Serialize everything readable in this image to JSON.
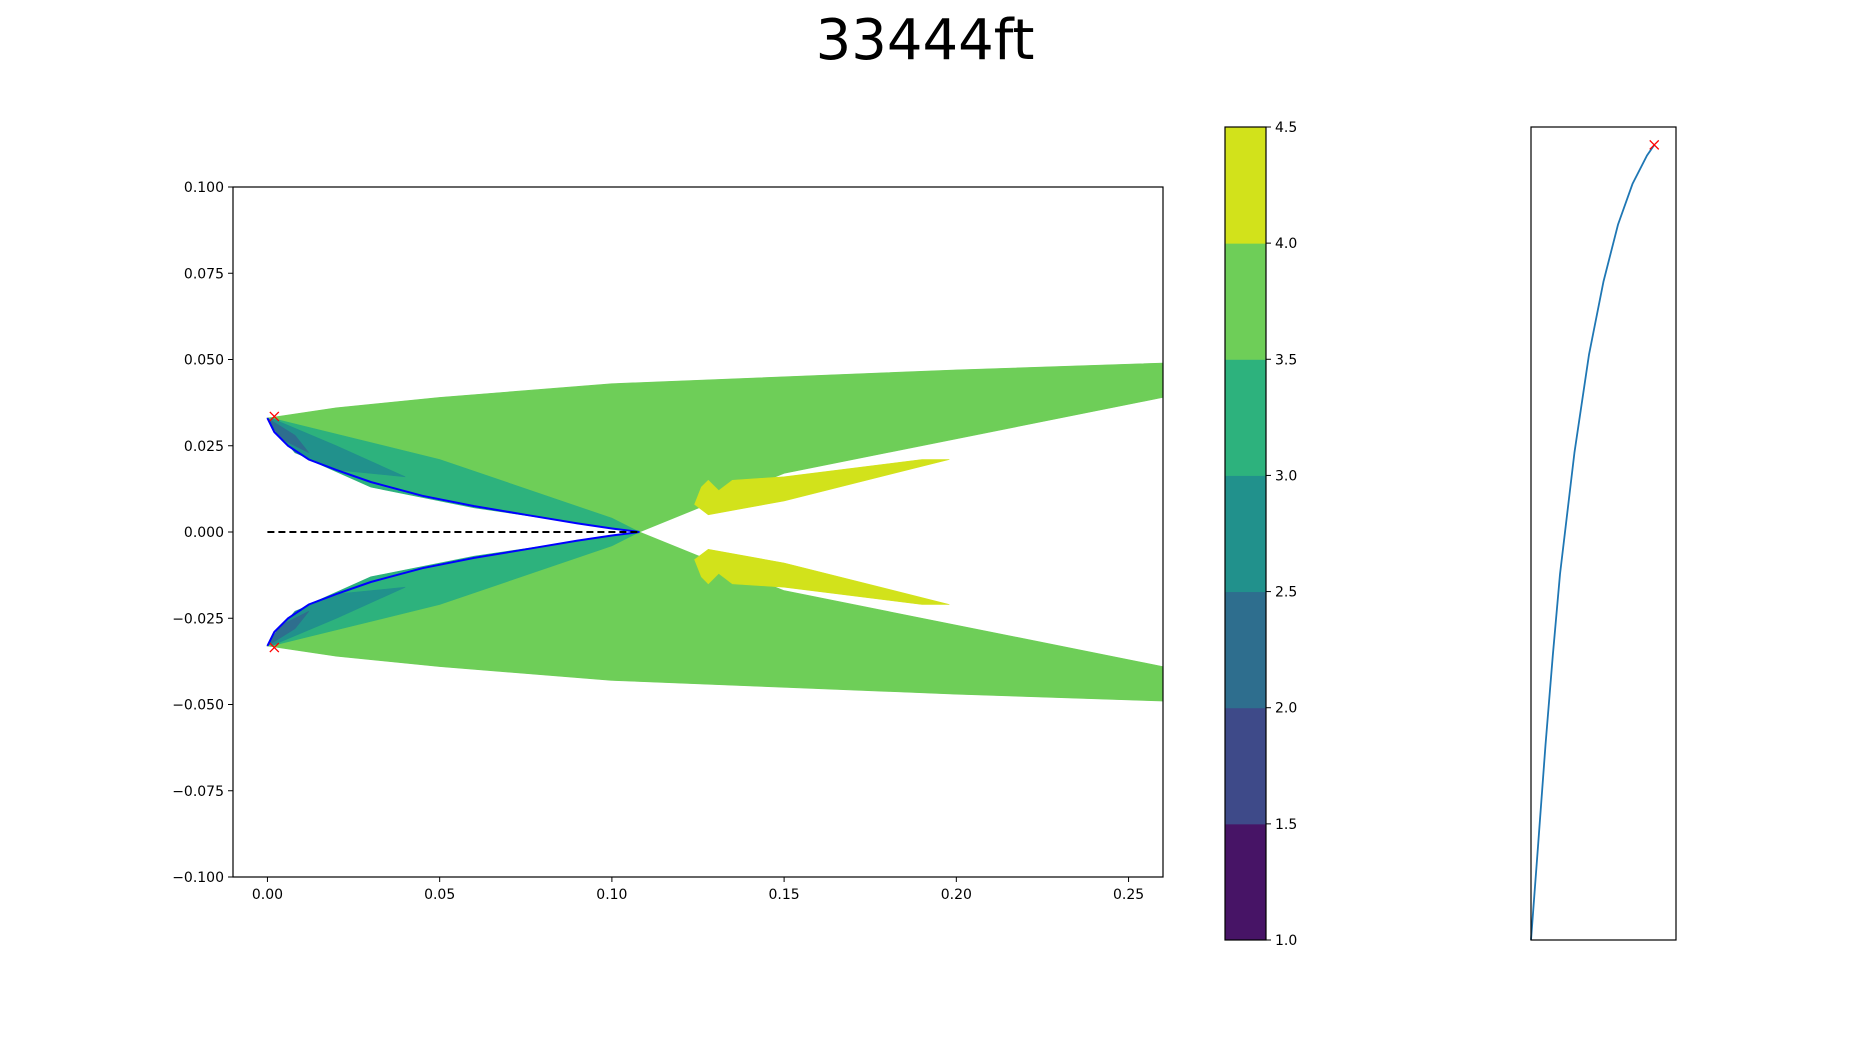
{
  "title": "33444ft",
  "chart_data": [
    {
      "type": "contourf",
      "xlim": [
        -0.01,
        0.26
      ],
      "ylim": [
        -0.1,
        0.1
      ],
      "x_ticks": [
        {
          "value": 0.0,
          "label": "0.00"
        },
        {
          "value": 0.05,
          "label": "0.05"
        },
        {
          "value": 0.1,
          "label": "0.10"
        },
        {
          "value": 0.15,
          "label": "0.15"
        },
        {
          "value": 0.2,
          "label": "0.20"
        },
        {
          "value": 0.25,
          "label": "0.25"
        }
      ],
      "y_ticks": [
        {
          "value": 0.1,
          "label": "0.100"
        },
        {
          "value": 0.075,
          "label": "0.075"
        },
        {
          "value": 0.05,
          "label": "0.050"
        },
        {
          "value": 0.025,
          "label": "0.025"
        },
        {
          "value": 0.0,
          "label": "0.000"
        },
        {
          "value": -0.025,
          "label": "−0.025"
        },
        {
          "value": -0.05,
          "label": "−0.050"
        },
        {
          "value": -0.075,
          "label": "−0.075"
        },
        {
          "value": -0.1,
          "label": "−0.100"
        }
      ],
      "grid": false,
      "contour_levels": [
        {
          "min": 2.0,
          "max": 2.5,
          "color": "#2e6e8e"
        },
        {
          "min": 2.5,
          "max": 3.0,
          "color": "#21918c"
        },
        {
          "min": 3.0,
          "max": 3.5,
          "color": "#2db27d"
        },
        {
          "min": 3.5,
          "max": 4.0,
          "color": "#6ece58"
        },
        {
          "min": 4.0,
          "max": 4.5,
          "color": "#d2e21b"
        }
      ],
      "regions": [
        {
          "level": "3.5-4.0",
          "polygon": [
            [
              0.0,
              0.033
            ],
            [
              0.02,
              0.036
            ],
            [
              0.05,
              0.039
            ],
            [
              0.1,
              0.043
            ],
            [
              0.15,
              0.045
            ],
            [
              0.2,
              0.047
            ],
            [
              0.26,
              0.049
            ],
            [
              0.26,
              0.039
            ],
            [
              0.15,
              0.017
            ],
            [
              0.108,
              0.0
            ],
            [
              0.06,
              0.012
            ],
            [
              0.02,
              0.023
            ]
          ]
        },
        {
          "level": "3.5-4.0",
          "polygon": [
            [
              0.0,
              -0.033
            ],
            [
              0.02,
              -0.036
            ],
            [
              0.05,
              -0.039
            ],
            [
              0.1,
              -0.043
            ],
            [
              0.15,
              -0.045
            ],
            [
              0.2,
              -0.047
            ],
            [
              0.26,
              -0.049
            ],
            [
              0.26,
              -0.039
            ],
            [
              0.15,
              -0.017
            ],
            [
              0.108,
              0.0
            ],
            [
              0.06,
              -0.012
            ],
            [
              0.02,
              -0.023
            ]
          ]
        },
        {
          "level": "4.0-4.5",
          "polygon": [
            [
              0.124,
              0.008
            ],
            [
              0.126,
              0.013
            ],
            [
              0.128,
              0.015
            ],
            [
              0.131,
              0.012
            ],
            [
              0.135,
              0.015
            ],
            [
              0.15,
              0.016
            ],
            [
              0.19,
              0.021
            ],
            [
              0.198,
              0.021
            ],
            [
              0.15,
              0.009
            ],
            [
              0.128,
              0.005
            ]
          ]
        },
        {
          "level": "4.0-4.5",
          "polygon": [
            [
              0.124,
              -0.008
            ],
            [
              0.126,
              -0.013
            ],
            [
              0.128,
              -0.015
            ],
            [
              0.131,
              -0.012
            ],
            [
              0.135,
              -0.015
            ],
            [
              0.15,
              -0.016
            ],
            [
              0.19,
              -0.021
            ],
            [
              0.198,
              -0.021
            ],
            [
              0.15,
              -0.009
            ],
            [
              0.128,
              -0.005
            ]
          ]
        },
        {
          "level": "3.0-3.5",
          "polygon": [
            [
              0.001,
              0.033
            ],
            [
              0.05,
              0.021
            ],
            [
              0.1,
              0.004
            ],
            [
              0.108,
              0.0
            ],
            [
              0.06,
              0.007
            ],
            [
              0.03,
              0.013
            ],
            [
              0.012,
              0.021
            ],
            [
              0.003,
              0.029
            ]
          ]
        },
        {
          "level": "3.0-3.5",
          "polygon": [
            [
              0.001,
              -0.033
            ],
            [
              0.05,
              -0.021
            ],
            [
              0.1,
              -0.004
            ],
            [
              0.108,
              0.0
            ],
            [
              0.06,
              -0.007
            ],
            [
              0.03,
              -0.013
            ],
            [
              0.012,
              -0.021
            ],
            [
              0.003,
              -0.029
            ]
          ]
        },
        {
          "level": "2.5-3.0",
          "polygon": [
            [
              0.001,
              0.033
            ],
            [
              0.02,
              0.025
            ],
            [
              0.04,
              0.016
            ],
            [
              0.02,
              0.018
            ],
            [
              0.008,
              0.023
            ],
            [
              0.002,
              0.03
            ]
          ]
        },
        {
          "level": "2.5-3.0",
          "polygon": [
            [
              0.001,
              -0.033
            ],
            [
              0.02,
              -0.025
            ],
            [
              0.04,
              -0.016
            ],
            [
              0.02,
              -0.018
            ],
            [
              0.008,
              -0.023
            ],
            [
              0.002,
              -0.03
            ]
          ]
        },
        {
          "level": "2.0-2.5",
          "polygon": [
            [
              0.0,
              0.033
            ],
            [
              0.008,
              0.028
            ],
            [
              0.012,
              0.023
            ],
            [
              0.004,
              0.027
            ],
            [
              0.001,
              0.031
            ]
          ]
        },
        {
          "level": "2.0-2.5",
          "polygon": [
            [
              0.0,
              -0.033
            ],
            [
              0.008,
              -0.028
            ],
            [
              0.012,
              -0.023
            ],
            [
              0.004,
              -0.027
            ],
            [
              0.001,
              -0.031
            ]
          ]
        }
      ],
      "series": [
        {
          "kind": "line",
          "color": "#0000ff",
          "style": "solid",
          "points": [
            [
              0.0,
              0.033
            ],
            [
              0.002,
              0.029
            ],
            [
              0.006,
              0.025
            ],
            [
              0.012,
              0.021
            ],
            [
              0.02,
              0.018
            ],
            [
              0.03,
              0.0145
            ],
            [
              0.045,
              0.0105
            ],
            [
              0.06,
              0.0075
            ],
            [
              0.075,
              0.005
            ],
            [
              0.09,
              0.0025
            ],
            [
              0.1,
              0.001
            ],
            [
              0.108,
              0.0
            ],
            [
              0.1,
              -0.001
            ],
            [
              0.09,
              -0.0025
            ],
            [
              0.075,
              -0.005
            ],
            [
              0.06,
              -0.0075
            ],
            [
              0.045,
              -0.0105
            ],
            [
              0.03,
              -0.0145
            ],
            [
              0.02,
              -0.018
            ],
            [
              0.012,
              -0.021
            ],
            [
              0.006,
              -0.025
            ],
            [
              0.002,
              -0.029
            ],
            [
              0.0,
              -0.033
            ]
          ]
        },
        {
          "kind": "line",
          "color": "#000000",
          "style": "dashed",
          "points": [
            [
              0.0,
              0.0
            ],
            [
              0.108,
              0.0
            ]
          ]
        },
        {
          "kind": "marker",
          "marker": "x",
          "color": "#ff0000",
          "points": [
            [
              0.002,
              0.0335
            ],
            [
              0.002,
              -0.0335
            ]
          ]
        }
      ]
    },
    {
      "type": "colorbar",
      "range": [
        1.0,
        4.5
      ],
      "bands": [
        {
          "min": 1.0,
          "max": 1.5,
          "color": "#471466"
        },
        {
          "min": 1.5,
          "max": 2.0,
          "color": "#3e4a89"
        },
        {
          "min": 2.0,
          "max": 2.5,
          "color": "#2e6e8e"
        },
        {
          "min": 2.5,
          "max": 3.0,
          "color": "#21918c"
        },
        {
          "min": 3.0,
          "max": 3.5,
          "color": "#2db27d"
        },
        {
          "min": 3.5,
          "max": 4.0,
          "color": "#6ece58"
        },
        {
          "min": 4.0,
          "max": 4.5,
          "color": "#d2e21b"
        }
      ],
      "ticks": [
        {
          "value": 4.5,
          "label": "4.5"
        },
        {
          "value": 4.0,
          "label": "4.0"
        },
        {
          "value": 3.5,
          "label": "3.5"
        },
        {
          "value": 3.0,
          "label": "3.0"
        },
        {
          "value": 2.5,
          "label": "2.5"
        },
        {
          "value": 2.0,
          "label": "2.0"
        },
        {
          "value": 1.5,
          "label": "1.5"
        },
        {
          "value": 1.0,
          "label": "1.0"
        }
      ]
    },
    {
      "type": "line",
      "xlim": [
        0,
        1
      ],
      "ylim": [
        0,
        1
      ],
      "axis_ticks": false,
      "series": [
        {
          "kind": "line",
          "color": "#1f77b4",
          "points": [
            [
              0.0,
              0.0
            ],
            [
              0.05,
              0.12
            ],
            [
              0.1,
              0.24
            ],
            [
              0.15,
              0.35
            ],
            [
              0.2,
              0.45
            ],
            [
              0.3,
              0.6
            ],
            [
              0.4,
              0.72
            ],
            [
              0.5,
              0.81
            ],
            [
              0.6,
              0.88
            ],
            [
              0.7,
              0.93
            ],
            [
              0.8,
              0.965
            ],
            [
              0.85,
              0.978
            ]
          ]
        },
        {
          "kind": "marker",
          "marker": "x",
          "color": "#ff0000",
          "points": [
            [
              0.85,
              0.978
            ]
          ]
        }
      ]
    }
  ]
}
